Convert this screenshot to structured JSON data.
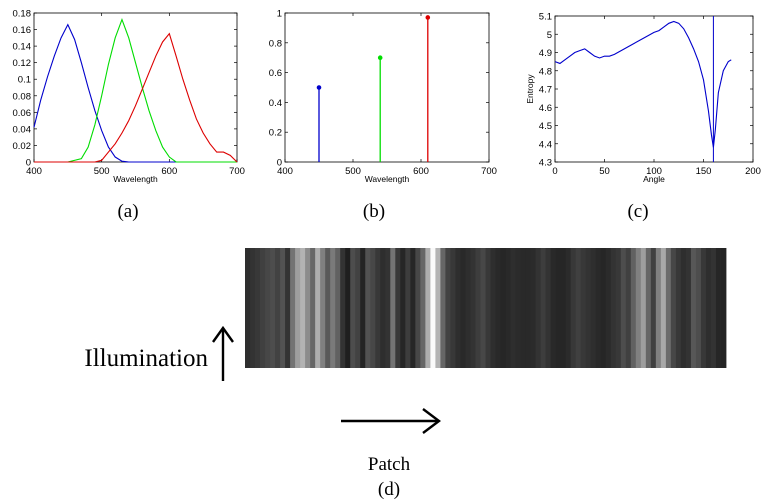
{
  "panel_labels": {
    "a": "(a)",
    "b": "(b)",
    "c": "(c)",
    "d": "(d)"
  },
  "panel_d": {
    "ylabel": "Illumination",
    "xlabel": "Patch"
  },
  "chart_data": [
    {
      "id": "a",
      "type": "line",
      "xlabel": "Wavelength",
      "ylabel": "",
      "xlim": [
        400,
        700
      ],
      "ylim": [
        0,
        0.18
      ],
      "xticks": [
        "400",
        "500",
        "600",
        "700"
      ],
      "yticks": [
        "0",
        "0.02",
        "0.04",
        "0.06",
        "0.08",
        "0.1",
        "0.12",
        "0.14",
        "0.16",
        "0.18"
      ],
      "series": [
        {
          "color": "#0000cc",
          "x": [
            400,
            410,
            420,
            430,
            440,
            450,
            460,
            470,
            480,
            490,
            500,
            510,
            520,
            530,
            540,
            560,
            600,
            700
          ],
          "y": [
            0.042,
            0.075,
            0.103,
            0.128,
            0.15,
            0.166,
            0.148,
            0.12,
            0.09,
            0.062,
            0.038,
            0.018,
            0.006,
            0.001,
            0,
            0,
            0,
            0
          ]
        },
        {
          "color": "#00dd00",
          "x": [
            400,
            450,
            470,
            480,
            490,
            500,
            510,
            520,
            530,
            540,
            550,
            560,
            570,
            580,
            590,
            600,
            610,
            700
          ],
          "y": [
            0,
            0,
            0.004,
            0.018,
            0.045,
            0.08,
            0.118,
            0.15,
            0.172,
            0.15,
            0.12,
            0.09,
            0.062,
            0.038,
            0.018,
            0.006,
            0,
            0
          ]
        },
        {
          "color": "#dd0000",
          "x": [
            400,
            490,
            500,
            510,
            520,
            530,
            540,
            550,
            560,
            570,
            580,
            590,
            600,
            610,
            620,
            630,
            640,
            650,
            660,
            670,
            680,
            690,
            700
          ],
          "y": [
            0,
            0,
            0.002,
            0.012,
            0.022,
            0.035,
            0.05,
            0.068,
            0.088,
            0.108,
            0.128,
            0.145,
            0.155,
            0.128,
            0.1,
            0.075,
            0.052,
            0.035,
            0.022,
            0.012,
            0.012,
            0.008,
            0
          ]
        }
      ]
    },
    {
      "id": "b",
      "type": "stem",
      "xlabel": "Wavelength",
      "ylabel": "",
      "xlim": [
        400,
        700
      ],
      "ylim": [
        0,
        1
      ],
      "xticks": [
        "400",
        "500",
        "600",
        "700"
      ],
      "yticks": [
        "0",
        "0.2",
        "0.4",
        "0.6",
        "0.8",
        "1"
      ],
      "series": [
        {
          "color": "#0000cc",
          "x": [
            450
          ],
          "y": [
            0.5
          ]
        },
        {
          "color": "#00dd00",
          "x": [
            540
          ],
          "y": [
            0.7
          ]
        },
        {
          "color": "#dd0000",
          "x": [
            610
          ],
          "y": [
            0.97
          ]
        }
      ]
    },
    {
      "id": "c",
      "type": "line",
      "xlabel": "Angle",
      "ylabel": "Entropy",
      "xlim": [
        0,
        200
      ],
      "ylim": [
        4.3,
        5.1
      ],
      "xticks": [
        "0",
        "50",
        "100",
        "150",
        "200"
      ],
      "yticks": [
        "4.3",
        "4.4",
        "4.5",
        "4.6",
        "4.7",
        "4.8",
        "4.9",
        "5",
        "5.1"
      ],
      "vline": 160,
      "series": [
        {
          "color": "#0000cc",
          "x": [
            0,
            5,
            10,
            15,
            20,
            25,
            30,
            35,
            40,
            45,
            50,
            55,
            60,
            70,
            80,
            90,
            100,
            105,
            110,
            115,
            120,
            125,
            130,
            135,
            140,
            145,
            150,
            155,
            158,
            160,
            162,
            165,
            170,
            175,
            178
          ],
          "y": [
            4.85,
            4.84,
            4.86,
            4.88,
            4.9,
            4.91,
            4.92,
            4.9,
            4.88,
            4.87,
            4.88,
            4.88,
            4.89,
            4.92,
            4.95,
            4.98,
            5.01,
            5.02,
            5.04,
            5.06,
            5.07,
            5.06,
            5.03,
            4.98,
            4.92,
            4.85,
            4.75,
            4.58,
            4.45,
            4.38,
            4.48,
            4.68,
            4.8,
            4.85,
            4.86
          ]
        }
      ]
    },
    {
      "id": "d",
      "type": "heatmap",
      "xlabel": "Patch",
      "ylabel": "Illumination",
      "columns": [
        0.18,
        0.2,
        0.22,
        0.25,
        0.28,
        0.3,
        0.26,
        0.32,
        0.2,
        0.45,
        0.62,
        0.7,
        0.55,
        0.4,
        0.68,
        0.5,
        0.35,
        0.48,
        0.38,
        0.2,
        0.12,
        0.3,
        0.26,
        0.14,
        0.32,
        0.28,
        0.22,
        0.18,
        0.2,
        0.45,
        0.22,
        0.15,
        0.24,
        0.15,
        0.28,
        0.4,
        0.68,
        0.98,
        0.7,
        0.4,
        0.26,
        0.22,
        0.18,
        0.16,
        0.18,
        0.2,
        0.24,
        0.28,
        0.22,
        0.18,
        0.16,
        0.15,
        0.16,
        0.18,
        0.17,
        0.16,
        0.16,
        0.17,
        0.2,
        0.24,
        0.2,
        0.16,
        0.15,
        0.15,
        0.17,
        0.22,
        0.25,
        0.22,
        0.2,
        0.18,
        0.16,
        0.15,
        0.17,
        0.2,
        0.22,
        0.3,
        0.25,
        0.38,
        0.5,
        0.62,
        0.4,
        0.25,
        0.5,
        0.66,
        0.42,
        0.28,
        0.22,
        0.18,
        0.2,
        0.34,
        0.3,
        0.22,
        0.18,
        0.2,
        0.15,
        0.14
      ]
    }
  ]
}
